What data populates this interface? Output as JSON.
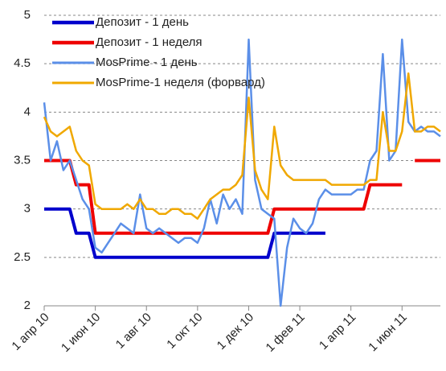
{
  "chart_data": {
    "type": "line",
    "categories": [
      "1 апр 10",
      null,
      null,
      null,
      null,
      null,
      null,
      null,
      "1 июн 10",
      null,
      null,
      null,
      null,
      null,
      null,
      null,
      "1 авг 10",
      null,
      null,
      null,
      null,
      null,
      null,
      null,
      "1 окт 10",
      null,
      null,
      null,
      null,
      null,
      null,
      null,
      "1 дек 10",
      null,
      null,
      null,
      null,
      null,
      null,
      null,
      "1 фев 11",
      null,
      null,
      null,
      null,
      null,
      null,
      null,
      "1 апр 11",
      null,
      null,
      null,
      null,
      null,
      null,
      null,
      "1 июн 11",
      null,
      null,
      null,
      null,
      null,
      null
    ],
    "series": [
      {
        "name": "Депозит - 1 день",
        "color": "#0000cc",
        "width": 4,
        "values": [
          3,
          3,
          3,
          3,
          3,
          2.75,
          2.75,
          2.75,
          2.5,
          2.5,
          2.5,
          2.5,
          2.5,
          2.5,
          2.5,
          2.5,
          2.5,
          2.5,
          2.5,
          2.5,
          2.5,
          2.5,
          2.5,
          2.5,
          2.5,
          2.5,
          2.5,
          2.5,
          2.5,
          2.5,
          2.5,
          2.5,
          2.5,
          2.5,
          2.5,
          2.5,
          2.75,
          2.75,
          2.75,
          2.75,
          2.75,
          2.75,
          2.75,
          2.75,
          2.75,
          null,
          null,
          null,
          null,
          null,
          null,
          null,
          null,
          null,
          null,
          null,
          null,
          null,
          null,
          null,
          null,
          null,
          null
        ]
      },
      {
        "name": "Депозит - 1 неделя",
        "color": "#ee0000",
        "width": 4,
        "values": [
          3.5,
          3.5,
          3.5,
          3.5,
          3.5,
          3.25,
          3.25,
          3.25,
          2.75,
          2.75,
          2.75,
          2.75,
          2.75,
          2.75,
          2.75,
          2.75,
          2.75,
          2.75,
          2.75,
          2.75,
          2.75,
          2.75,
          2.75,
          2.75,
          2.75,
          2.75,
          2.75,
          2.75,
          2.75,
          2.75,
          2.75,
          2.75,
          2.75,
          2.75,
          2.75,
          2.75,
          3,
          3,
          3,
          3,
          3,
          3,
          3,
          3,
          3,
          3,
          3,
          3,
          3,
          3,
          3,
          3.25,
          3.25,
          3.25,
          3.25,
          3.25,
          3.25,
          null,
          3.5,
          3.5,
          3.5,
          3.5,
          3.5
        ]
      },
      {
        "name": "MosPrime - 1 день",
        "color": "#5b8fe8",
        "width": 2.5,
        "values": [
          4.1,
          3.5,
          3.7,
          3.4,
          3.5,
          3.3,
          3.1,
          3.0,
          2.6,
          2.55,
          2.65,
          2.75,
          2.85,
          2.8,
          2.75,
          3.15,
          2.8,
          2.75,
          2.8,
          2.75,
          2.7,
          2.65,
          2.7,
          2.7,
          2.65,
          2.8,
          3.1,
          2.85,
          3.15,
          3.0,
          3.1,
          2.95,
          4.75,
          3.3,
          3.0,
          2.95,
          2.9,
          2.0,
          2.6,
          2.9,
          2.8,
          2.75,
          2.85,
          3.1,
          3.2,
          3.15,
          3.15,
          3.15,
          3.15,
          3.2,
          3.2,
          3.5,
          3.6,
          4.6,
          3.5,
          3.6,
          4.75,
          3.9,
          3.8,
          3.85,
          3.8,
          3.8,
          3.75
        ]
      },
      {
        "name": "MosPrime-1 неделя (форвард)",
        "color": "#f0a800",
        "width": 2.5,
        "values": [
          3.95,
          3.8,
          3.75,
          3.8,
          3.85,
          3.6,
          3.5,
          3.45,
          3.05,
          3.0,
          3.0,
          3.0,
          3.0,
          3.05,
          3.0,
          3.1,
          3.0,
          3.0,
          2.95,
          2.95,
          3.0,
          3.0,
          2.95,
          2.95,
          2.9,
          3.0,
          3.1,
          3.15,
          3.2,
          3.2,
          3.25,
          3.35,
          4.15,
          3.4,
          3.2,
          3.1,
          3.85,
          3.45,
          3.35,
          3.3,
          3.3,
          3.3,
          3.3,
          3.3,
          3.3,
          3.25,
          3.25,
          3.25,
          3.25,
          3.25,
          3.25,
          3.3,
          3.3,
          4.0,
          3.6,
          3.6,
          3.8,
          4.4,
          3.8,
          3.8,
          3.85,
          3.85,
          3.8
        ]
      }
    ],
    "ylim": [
      2,
      5
    ],
    "yticks": [
      2,
      2.5,
      3,
      3.5,
      4,
      4.5,
      5
    ],
    "grid": true,
    "legend": "top-left"
  }
}
